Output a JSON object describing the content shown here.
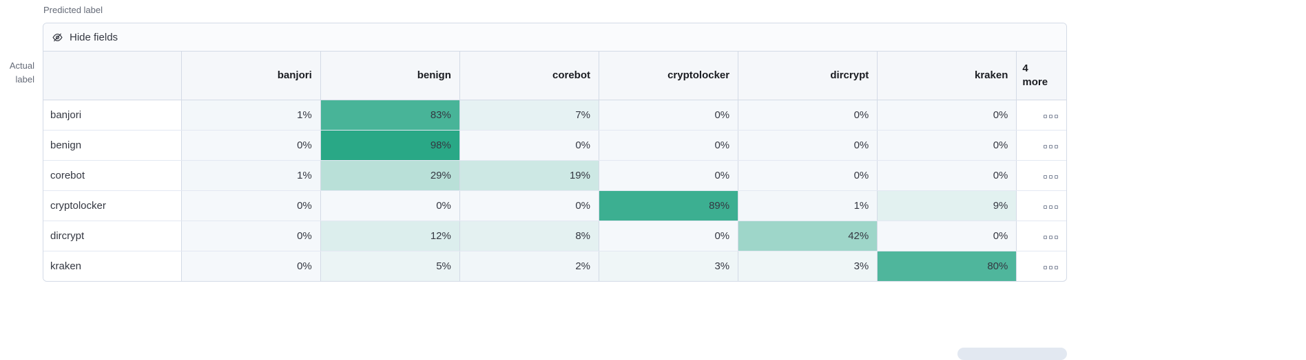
{
  "labels": {
    "predicted": "Predicted label",
    "actual": "Actual label"
  },
  "toolbar": {
    "hide_fields_label": "Hide fields"
  },
  "colors": {
    "accent": "#25a684",
    "zero_bg": "#f5f8fb",
    "border": "#d3dae6"
  },
  "chart_data": {
    "type": "heatmap",
    "columns": [
      "banjori",
      "benign",
      "corebot",
      "cryptolocker",
      "dircrypt",
      "kraken"
    ],
    "more_column_header": "4 more",
    "value_format": "percent",
    "rows": [
      {
        "label": "banjori",
        "values": [
          1,
          83,
          7,
          0,
          0,
          0
        ]
      },
      {
        "label": "benign",
        "values": [
          0,
          98,
          0,
          0,
          0,
          0
        ]
      },
      {
        "label": "corebot",
        "values": [
          1,
          29,
          19,
          0,
          0,
          0
        ]
      },
      {
        "label": "cryptolocker",
        "values": [
          0,
          0,
          0,
          89,
          1,
          9
        ]
      },
      {
        "label": "dircrypt",
        "values": [
          0,
          12,
          8,
          0,
          42,
          0
        ]
      },
      {
        "label": "kraken",
        "values": [
          0,
          5,
          2,
          3,
          3,
          80
        ]
      }
    ]
  }
}
